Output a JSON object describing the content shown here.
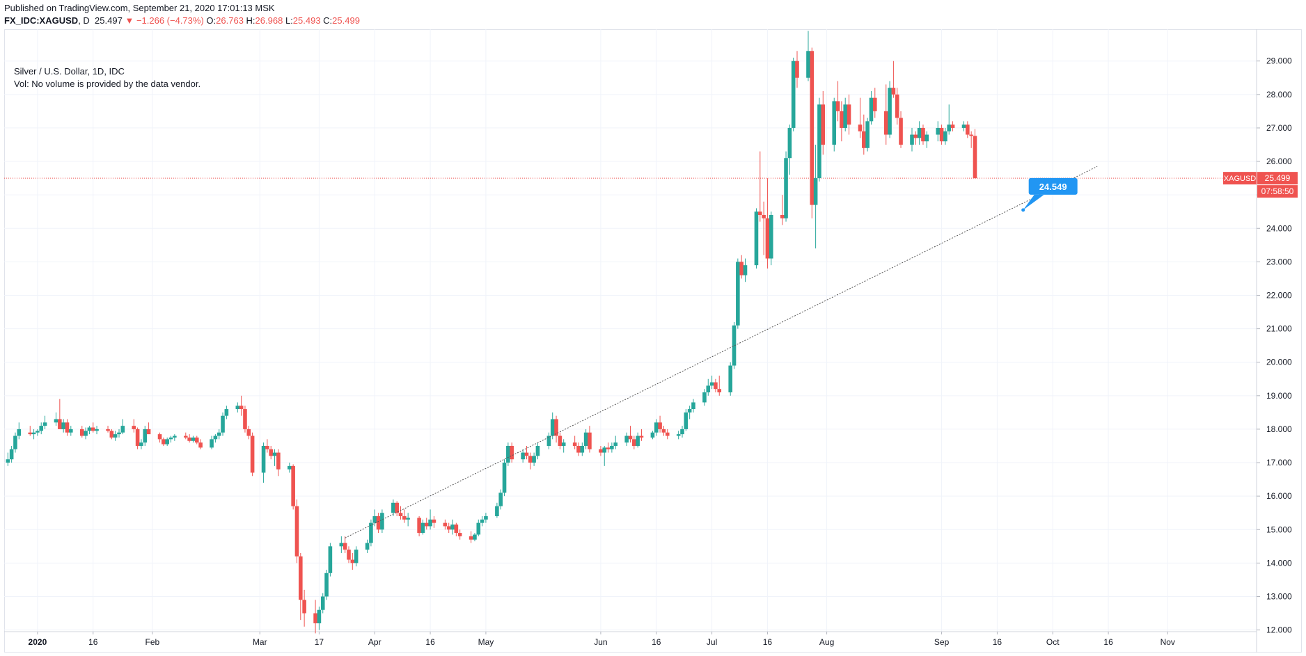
{
  "header": {
    "published": "Published on TradingView.com, September 21, 2020 17:01:13 MSK",
    "symbol": "FX_IDC:XAGUSD",
    "interval": "D",
    "last": "25.497",
    "change_arrow": "▼",
    "change": "−1.266 (−4.73%)",
    "o_label": "O:",
    "o": "26.763",
    "h_label": "H:",
    "h": "26.968",
    "l_label": "L:",
    "l": "25.493",
    "c_label": "C:",
    "c": "25.499"
  },
  "legend": {
    "title": "Silver / U.S. Dollar, 1D, IDC",
    "volume_note": "Vol: No volume is provided by the data vendor."
  },
  "price_tag": {
    "label": "XAGUSD",
    "value": "25.499",
    "countdown": "07:58:50"
  },
  "trendline_tag": "24.549",
  "colors": {
    "up": "#26a69a",
    "down": "#ef5350",
    "trendline": "#555555",
    "tag": "#2196f3",
    "grid": "#f0f3fa"
  },
  "chart_data": {
    "type": "candlestick",
    "symbol": "XAGUSD",
    "y_ticks": [
      "12.000",
      "13.000",
      "14.000",
      "15.000",
      "16.000",
      "17.000",
      "18.000",
      "19.000",
      "20.000",
      "21.000",
      "22.000",
      "23.000",
      "24.000",
      "25.000",
      "26.000",
      "27.000",
      "28.000",
      "29.000"
    ],
    "ylim": [
      11.95,
      29.95
    ],
    "x_ticks": [
      "2020",
      "16",
      "Feb",
      "Mar",
      "17",
      "Apr",
      "16",
      "May",
      "Jun",
      "16",
      "Jul",
      "16",
      "Aug",
      "Sep",
      "16",
      "Oct",
      "16",
      "Nov"
    ],
    "x_tick_dates": [
      "2020-01-01",
      "2020-01-16",
      "2020-02-01",
      "2020-03-01",
      "2020-03-17",
      "2020-04-01",
      "2020-04-16",
      "2020-05-01",
      "2020-06-01",
      "2020-06-16",
      "2020-07-01",
      "2020-07-16",
      "2020-08-01",
      "2020-09-01",
      "2020-09-16",
      "2020-10-01",
      "2020-10-16",
      "2020-11-01"
    ],
    "x_range": [
      "2019-12-23",
      "2020-11-25"
    ],
    "last_price": 25.499,
    "trendline": {
      "start": [
        "2020-03-24",
        14.75
      ],
      "end": [
        "2020-10-13",
        25.85
      ],
      "label_at": [
        "2020-09-23",
        24.549
      ]
    },
    "ohlc": [
      [
        "2019-12-24",
        17.0,
        17.3,
        16.9,
        17.1
      ],
      [
        "2019-12-25",
        17.1,
        17.5,
        17.0,
        17.4
      ],
      [
        "2019-12-26",
        17.4,
        17.9,
        17.3,
        17.8
      ],
      [
        "2019-12-27",
        17.8,
        18.2,
        17.7,
        18.0
      ],
      [
        "2019-12-30",
        17.9,
        18.1,
        17.8,
        17.85
      ],
      [
        "2019-12-31",
        17.85,
        18.0,
        17.7,
        17.9
      ],
      [
        "2020-01-01",
        17.9,
        18.0,
        17.8,
        17.95
      ],
      [
        "2020-01-02",
        17.95,
        18.2,
        17.85,
        18.1
      ],
      [
        "2020-01-03",
        18.1,
        18.4,
        18.0,
        18.2
      ],
      [
        "2020-01-06",
        18.2,
        18.5,
        18.1,
        18.3
      ],
      [
        "2020-01-07",
        18.3,
        18.9,
        18.1,
        18.0
      ],
      [
        "2020-01-08",
        18.0,
        18.3,
        17.9,
        18.2
      ],
      [
        "2020-01-09",
        18.2,
        18.3,
        17.8,
        17.9
      ],
      [
        "2020-01-10",
        17.9,
        18.1,
        17.8,
        18.0
      ],
      [
        "2020-01-13",
        18.0,
        18.1,
        17.75,
        17.8
      ],
      [
        "2020-01-14",
        17.8,
        18.05,
        17.7,
        17.95
      ],
      [
        "2020-01-15",
        17.95,
        18.1,
        17.85,
        18.05
      ],
      [
        "2020-01-16",
        18.05,
        18.2,
        17.9,
        17.95
      ],
      [
        "2020-01-17",
        17.95,
        18.1,
        17.85,
        18.0
      ],
      [
        "2020-01-20",
        18.0,
        18.1,
        17.9,
        17.95
      ],
      [
        "2020-01-21",
        17.95,
        18.0,
        17.7,
        17.75
      ],
      [
        "2020-01-22",
        17.75,
        17.95,
        17.65,
        17.85
      ],
      [
        "2020-01-23",
        17.85,
        18.0,
        17.75,
        17.9
      ],
      [
        "2020-01-24",
        17.9,
        18.3,
        17.85,
        18.1
      ],
      [
        "2020-01-27",
        18.1,
        18.3,
        17.9,
        18.0
      ],
      [
        "2020-01-28",
        18.0,
        18.05,
        17.4,
        17.5
      ],
      [
        "2020-01-29",
        17.5,
        17.7,
        17.4,
        17.6
      ],
      [
        "2020-01-30",
        17.6,
        18.1,
        17.5,
        18.0
      ],
      [
        "2020-01-31",
        18.0,
        18.2,
        17.9,
        17.85
      ],
      [
        "2020-02-03",
        17.85,
        17.9,
        17.6,
        17.7
      ],
      [
        "2020-02-04",
        17.7,
        17.75,
        17.5,
        17.55
      ],
      [
        "2020-02-05",
        17.55,
        17.75,
        17.5,
        17.7
      ],
      [
        "2020-02-06",
        17.7,
        17.8,
        17.6,
        17.75
      ],
      [
        "2020-02-07",
        17.75,
        17.85,
        17.65,
        17.8
      ],
      [
        "2020-02-10",
        17.8,
        17.9,
        17.7,
        17.75
      ],
      [
        "2020-02-11",
        17.75,
        17.85,
        17.6,
        17.65
      ],
      [
        "2020-02-12",
        17.65,
        17.8,
        17.6,
        17.75
      ],
      [
        "2020-02-13",
        17.75,
        17.8,
        17.55,
        17.6
      ],
      [
        "2020-02-14",
        17.6,
        17.7,
        17.4,
        17.45
      ],
      [
        "2020-02-17",
        17.45,
        17.8,
        17.4,
        17.7
      ],
      [
        "2020-02-18",
        17.7,
        17.85,
        17.6,
        17.8
      ],
      [
        "2020-02-19",
        17.8,
        18.0,
        17.7,
        17.9
      ],
      [
        "2020-02-20",
        17.9,
        18.5,
        17.8,
        18.4
      ],
      [
        "2020-02-21",
        18.4,
        18.7,
        18.3,
        18.6
      ],
      [
        "2020-02-24",
        18.6,
        18.8,
        18.5,
        18.7
      ],
      [
        "2020-02-25",
        18.7,
        19.0,
        18.4,
        18.6
      ],
      [
        "2020-02-26",
        18.6,
        18.7,
        17.9,
        18.0
      ],
      [
        "2020-02-27",
        18.0,
        18.1,
        17.7,
        17.8
      ],
      [
        "2020-02-28",
        17.8,
        17.9,
        16.6,
        16.7
      ],
      [
        "2020-03-02",
        16.7,
        17.6,
        16.4,
        17.5
      ],
      [
        "2020-03-03",
        17.5,
        17.7,
        17.3,
        17.4
      ],
      [
        "2020-03-04",
        17.4,
        17.5,
        17.1,
        17.2
      ],
      [
        "2020-03-05",
        17.2,
        17.4,
        16.9,
        17.3
      ],
      [
        "2020-03-06",
        17.3,
        17.4,
        16.6,
        16.8
      ],
      [
        "2020-03-09",
        16.8,
        17.0,
        16.7,
        16.9
      ],
      [
        "2020-03-10",
        16.9,
        16.95,
        15.6,
        15.7
      ],
      [
        "2020-03-11",
        15.7,
        15.9,
        14.0,
        14.2
      ],
      [
        "2020-03-12",
        14.2,
        14.3,
        12.3,
        12.9
      ],
      [
        "2020-03-13",
        12.9,
        13.2,
        12.1,
        12.5
      ],
      [
        "2020-03-16",
        12.5,
        12.9,
        11.9,
        12.2
      ],
      [
        "2020-03-17",
        12.2,
        12.7,
        12.0,
        12.6
      ],
      [
        "2020-03-18",
        12.6,
        13.1,
        12.5,
        13.0
      ],
      [
        "2020-03-19",
        13.0,
        13.8,
        12.9,
        13.7
      ],
      [
        "2020-03-20",
        13.7,
        14.6,
        13.6,
        14.5
      ],
      [
        "2020-03-23",
        14.5,
        14.8,
        14.3,
        14.6
      ],
      [
        "2020-03-24",
        14.6,
        14.8,
        14.3,
        14.4
      ],
      [
        "2020-03-25",
        14.4,
        14.5,
        14.0,
        14.1
      ],
      [
        "2020-03-26",
        14.1,
        14.3,
        13.8,
        14.0
      ],
      [
        "2020-03-27",
        14.0,
        14.5,
        13.9,
        14.4
      ],
      [
        "2020-03-30",
        14.4,
        14.7,
        14.3,
        14.6
      ],
      [
        "2020-03-31",
        14.6,
        15.3,
        14.5,
        15.2
      ],
      [
        "2020-04-01",
        15.2,
        15.6,
        15.1,
        15.4
      ],
      [
        "2020-04-02",
        15.4,
        15.5,
        14.9,
        15.0
      ],
      [
        "2020-04-03",
        15.0,
        15.6,
        14.9,
        15.5
      ],
      [
        "2020-04-06",
        15.5,
        15.9,
        15.4,
        15.8
      ],
      [
        "2020-04-07",
        15.8,
        15.85,
        15.4,
        15.5
      ],
      [
        "2020-04-08",
        15.5,
        15.7,
        15.3,
        15.4
      ],
      [
        "2020-04-09",
        15.4,
        15.6,
        15.2,
        15.3
      ],
      [
        "2020-04-10",
        15.3,
        15.5,
        15.1,
        15.35
      ],
      [
        "2020-04-13",
        15.35,
        15.4,
        14.8,
        14.9
      ],
      [
        "2020-04-14",
        14.9,
        15.3,
        14.85,
        15.2
      ],
      [
        "2020-04-15",
        15.2,
        15.35,
        15.0,
        15.1
      ],
      [
        "2020-04-16",
        15.1,
        15.6,
        15.0,
        15.3
      ],
      [
        "2020-04-17",
        15.3,
        15.4,
        15.05,
        15.2
      ],
      [
        "2020-04-20",
        15.2,
        15.3,
        15.0,
        15.1
      ],
      [
        "2020-04-21",
        15.1,
        15.2,
        14.9,
        15.0
      ],
      [
        "2020-04-22",
        15.0,
        15.3,
        14.85,
        15.15
      ],
      [
        "2020-04-23",
        15.15,
        15.2,
        14.8,
        14.9
      ],
      [
        "2020-04-24",
        14.9,
        15.0,
        14.7,
        14.8
      ],
      [
        "2020-04-27",
        14.8,
        14.95,
        14.6,
        14.7
      ],
      [
        "2020-04-28",
        14.7,
        14.9,
        14.65,
        14.85
      ],
      [
        "2020-04-29",
        14.85,
        15.3,
        14.8,
        15.2
      ],
      [
        "2020-04-30",
        15.2,
        15.4,
        15.1,
        15.3
      ],
      [
        "2020-05-01",
        15.3,
        15.5,
        15.2,
        15.4
      ],
      [
        "2020-05-04",
        15.4,
        15.8,
        15.35,
        15.7
      ],
      [
        "2020-05-05",
        15.7,
        16.2,
        15.6,
        16.1
      ],
      [
        "2020-05-06",
        16.1,
        17.1,
        16.0,
        17.0
      ],
      [
        "2020-05-07",
        17.0,
        17.6,
        16.9,
        17.5
      ],
      [
        "2020-05-08",
        17.5,
        17.6,
        17.0,
        17.1
      ],
      [
        "2020-05-11",
        17.1,
        17.4,
        17.0,
        17.3
      ],
      [
        "2020-05-12",
        17.3,
        17.5,
        17.1,
        17.2
      ],
      [
        "2020-05-13",
        17.2,
        17.3,
        16.8,
        17.0
      ],
      [
        "2020-05-14",
        17.0,
        17.3,
        16.9,
        17.2
      ],
      [
        "2020-05-15",
        17.2,
        17.6,
        17.1,
        17.5
      ],
      [
        "2020-05-18",
        17.5,
        17.9,
        17.4,
        17.8
      ],
      [
        "2020-05-19",
        17.8,
        18.5,
        17.7,
        18.3
      ],
      [
        "2020-05-20",
        18.3,
        18.4,
        17.6,
        17.8
      ],
      [
        "2020-05-21",
        17.8,
        17.9,
        17.4,
        17.5
      ],
      [
        "2020-05-22",
        17.5,
        17.7,
        17.3,
        17.6
      ],
      [
        "2020-05-25",
        17.6,
        17.8,
        17.4,
        17.5
      ],
      [
        "2020-05-26",
        17.5,
        17.6,
        17.2,
        17.3
      ],
      [
        "2020-05-27",
        17.3,
        17.6,
        17.2,
        17.5
      ],
      [
        "2020-05-28",
        17.5,
        18.0,
        17.4,
        17.9
      ],
      [
        "2020-05-29",
        17.9,
        18.1,
        17.3,
        17.4
      ],
      [
        "2020-06-01",
        17.4,
        17.5,
        17.2,
        17.3
      ],
      [
        "2020-06-02",
        17.3,
        17.5,
        16.9,
        17.45
      ],
      [
        "2020-06-03",
        17.45,
        17.6,
        17.3,
        17.4
      ],
      [
        "2020-06-04",
        17.4,
        17.6,
        17.3,
        17.5
      ],
      [
        "2020-06-05",
        17.5,
        17.8,
        17.4,
        17.6
      ],
      [
        "2020-06-08",
        17.6,
        17.9,
        17.5,
        17.8
      ],
      [
        "2020-06-09",
        17.8,
        18.1,
        17.6,
        17.7
      ],
      [
        "2020-06-10",
        17.7,
        17.8,
        17.4,
        17.5
      ],
      [
        "2020-06-11",
        17.5,
        17.9,
        17.45,
        17.8
      ],
      [
        "2020-06-12",
        17.8,
        18.0,
        17.65,
        17.75
      ],
      [
        "2020-06-15",
        17.75,
        17.95,
        17.7,
        17.9
      ],
      [
        "2020-06-16",
        17.9,
        18.3,
        17.8,
        18.2
      ],
      [
        "2020-06-17",
        18.2,
        18.4,
        17.9,
        18.0
      ],
      [
        "2020-06-18",
        18.0,
        18.1,
        17.8,
        17.9
      ],
      [
        "2020-06-19",
        17.9,
        18.0,
        17.7,
        17.8
      ],
      [
        "2020-06-22",
        17.8,
        17.95,
        17.7,
        17.85
      ],
      [
        "2020-06-23",
        17.85,
        18.1,
        17.75,
        18.0
      ],
      [
        "2020-06-24",
        18.0,
        18.6,
        17.95,
        18.5
      ],
      [
        "2020-06-25",
        18.5,
        18.7,
        18.3,
        18.6
      ],
      [
        "2020-06-26",
        18.6,
        18.9,
        18.5,
        18.8
      ],
      [
        "2020-06-29",
        18.8,
        19.2,
        18.7,
        19.1
      ],
      [
        "2020-06-30",
        19.1,
        19.5,
        19.0,
        19.3
      ],
      [
        "2020-07-01",
        19.3,
        19.6,
        19.2,
        19.4
      ],
      [
        "2020-07-02",
        19.4,
        19.5,
        19.1,
        19.2
      ],
      [
        "2020-07-03",
        19.2,
        19.6,
        19.0,
        19.1
      ],
      [
        "2020-07-06",
        19.1,
        20.0,
        19.0,
        19.9
      ],
      [
        "2020-07-07",
        19.9,
        21.2,
        19.8,
        21.1
      ],
      [
        "2020-07-08",
        21.1,
        23.1,
        21.0,
        23.0
      ],
      [
        "2020-07-09",
        23.0,
        23.2,
        22.5,
        22.6
      ],
      [
        "2020-07-10",
        22.6,
        23.1,
        22.4,
        22.9
      ],
      [
        "2020-07-13",
        22.9,
        24.6,
        22.8,
        24.5
      ],
      [
        "2020-07-14",
        24.5,
        26.3,
        24.2,
        24.4
      ],
      [
        "2020-07-15",
        24.4,
        24.8,
        23.2,
        24.3
      ],
      [
        "2020-07-16",
        24.3,
        25.5,
        22.8,
        23.1
      ],
      [
        "2020-07-17",
        23.1,
        24.5,
        22.9,
        24.4
      ],
      [
        "2020-07-20",
        24.4,
        25.0,
        24.1,
        24.3
      ],
      [
        "2020-07-21",
        24.3,
        26.3,
        24.2,
        26.1
      ],
      [
        "2020-07-22",
        26.1,
        27.1,
        25.6,
        27.0
      ],
      [
        "2020-07-23",
        27.0,
        29.1,
        26.9,
        29.0
      ],
      [
        "2020-07-24",
        29.0,
        29.3,
        28.2,
        28.5
      ],
      [
        "2020-07-27",
        28.5,
        29.9,
        28.4,
        29.3
      ],
      [
        "2020-07-28",
        29.3,
        29.4,
        24.3,
        24.7
      ],
      [
        "2020-07-29",
        24.7,
        26.5,
        23.4,
        25.5
      ],
      [
        "2020-07-30",
        25.5,
        27.9,
        25.4,
        27.7
      ],
      [
        "2020-07-31",
        27.7,
        28.1,
        26.2,
        26.5
      ],
      [
        "2020-08-03",
        26.5,
        27.9,
        26.3,
        27.8
      ],
      [
        "2020-08-04",
        27.8,
        28.4,
        27.2,
        27.5
      ],
      [
        "2020-08-05",
        27.5,
        27.8,
        26.6,
        27.0
      ],
      [
        "2020-08-06",
        27.0,
        27.9,
        26.9,
        27.7
      ],
      [
        "2020-08-07",
        27.7,
        28.0,
        26.8,
        27.1
      ],
      [
        "2020-08-10",
        27.1,
        27.9,
        26.7,
        26.9
      ],
      [
        "2020-08-11",
        26.9,
        27.4,
        26.2,
        26.4
      ],
      [
        "2020-08-12",
        26.4,
        27.3,
        26.3,
        27.2
      ],
      [
        "2020-08-13",
        27.2,
        28.1,
        27.1,
        27.9
      ],
      [
        "2020-08-14",
        27.9,
        28.2,
        27.3,
        27.5
      ],
      [
        "2020-08-17",
        27.5,
        28.3,
        26.5,
        26.8
      ],
      [
        "2020-08-18",
        26.8,
        28.4,
        26.7,
        28.2
      ],
      [
        "2020-08-19",
        28.2,
        29.0,
        27.9,
        28.0
      ],
      [
        "2020-08-20",
        28.0,
        28.2,
        27.1,
        27.3
      ],
      [
        "2020-08-21",
        27.3,
        27.5,
        26.4,
        26.5
      ],
      [
        "2020-08-24",
        26.5,
        27.0,
        26.3,
        26.8
      ],
      [
        "2020-08-25",
        26.8,
        26.9,
        26.5,
        26.7
      ],
      [
        "2020-08-26",
        26.7,
        27.2,
        26.5,
        27.0
      ],
      [
        "2020-08-27",
        27.0,
        27.1,
        26.5,
        26.6
      ],
      [
        "2020-08-28",
        26.6,
        26.9,
        26.4,
        26.8
      ],
      [
        "2020-08-31",
        26.8,
        27.2,
        26.6,
        27.0
      ],
      [
        "2020-09-01",
        27.0,
        27.1,
        26.5,
        26.6
      ],
      [
        "2020-09-02",
        26.6,
        27.0,
        26.5,
        26.9
      ],
      [
        "2020-09-03",
        26.9,
        27.7,
        26.8,
        27.1
      ],
      [
        "2020-09-04",
        27.1,
        27.2,
        26.9,
        27.0
      ],
      [
        "2020-09-07",
        27.0,
        27.2,
        26.9,
        27.1
      ],
      [
        "2020-09-08",
        27.1,
        27.2,
        26.7,
        26.8
      ],
      [
        "2020-09-09",
        26.8,
        26.9,
        26.4,
        26.763
      ],
      [
        "2020-09-10",
        26.763,
        26.968,
        25.493,
        25.499
      ]
    ]
  }
}
